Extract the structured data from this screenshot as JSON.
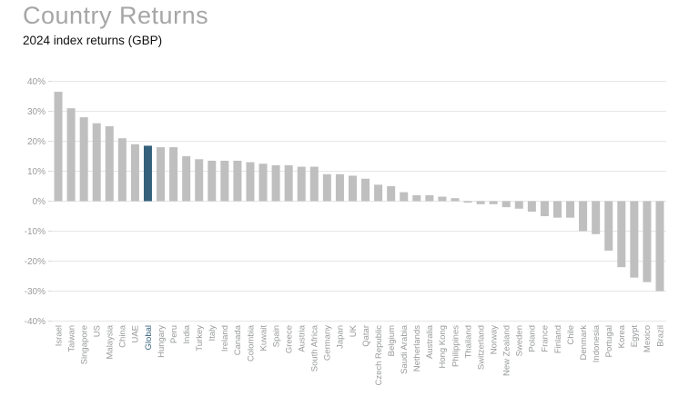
{
  "header": {
    "title": "Country Returns",
    "subtitle": "2024 index returns (GBP)"
  },
  "colors": {
    "bar_default": "#bfbfbf",
    "bar_highlight": "#35617c",
    "gridline": "#e6e6e6",
    "tick_mark": "#d8d8d8",
    "y_label": "#9b9b9b",
    "x_label": "#97999b",
    "title": "#a6a6a6",
    "subtitle": "#111111"
  },
  "chart_data": {
    "type": "bar",
    "title": "Country Returns",
    "subtitle": "2024 index returns (GBP)",
    "xlabel": "",
    "ylabel": "",
    "ylim": [
      -40,
      40
    ],
    "y_ticks": [
      40,
      30,
      20,
      10,
      0,
      -10,
      -20,
      -30,
      -40
    ],
    "y_tick_labels": [
      "40%",
      "30%",
      "20%",
      "10%",
      "0%",
      "-10%",
      "-20%",
      "-30%",
      "-40%"
    ],
    "grid": "horizontal",
    "legend_position": "none",
    "highlight_category": "Global",
    "categories": [
      "Israel",
      "Taiwan",
      "Singapore",
      "US",
      "Malaysia",
      "China",
      "UAE",
      "Global",
      "Hungary",
      "Peru",
      "India",
      "Turkey",
      "Italy",
      "Ireland",
      "Canada",
      "Colombia",
      "Kuwait",
      "Spain",
      "Greece",
      "Austria",
      "South Africa",
      "Germany",
      "Japan",
      "UK",
      "Qatar",
      "Czech Republic",
      "Belgium",
      "Saudi Arabia",
      "Netherlands",
      "Australia",
      "Hong Kong",
      "Philippines",
      "Thailand",
      "Switzerland",
      "Norway",
      "New Zealand",
      "Sweden",
      "Poland",
      "France",
      "Finland",
      "Chile",
      "Denmark",
      "Indonesia",
      "Portugal",
      "Korea",
      "Egypt",
      "Mexico",
      "Brazil"
    ],
    "values": [
      36.5,
      31,
      28,
      26,
      25,
      21,
      19,
      18.5,
      18,
      18,
      15,
      14,
      13.5,
      13.5,
      13.5,
      13,
      12.5,
      12,
      12,
      11.5,
      11.5,
      9,
      9,
      8.5,
      7.5,
      5.5,
      5,
      3,
      2,
      2,
      1.5,
      1,
      -0.5,
      -1,
      -1,
      -2,
      -2.5,
      -3.5,
      -5,
      -5.5,
      -5.5,
      -10,
      -11,
      -16.5,
      -22,
      -25.5,
      -27,
      -30
    ]
  }
}
